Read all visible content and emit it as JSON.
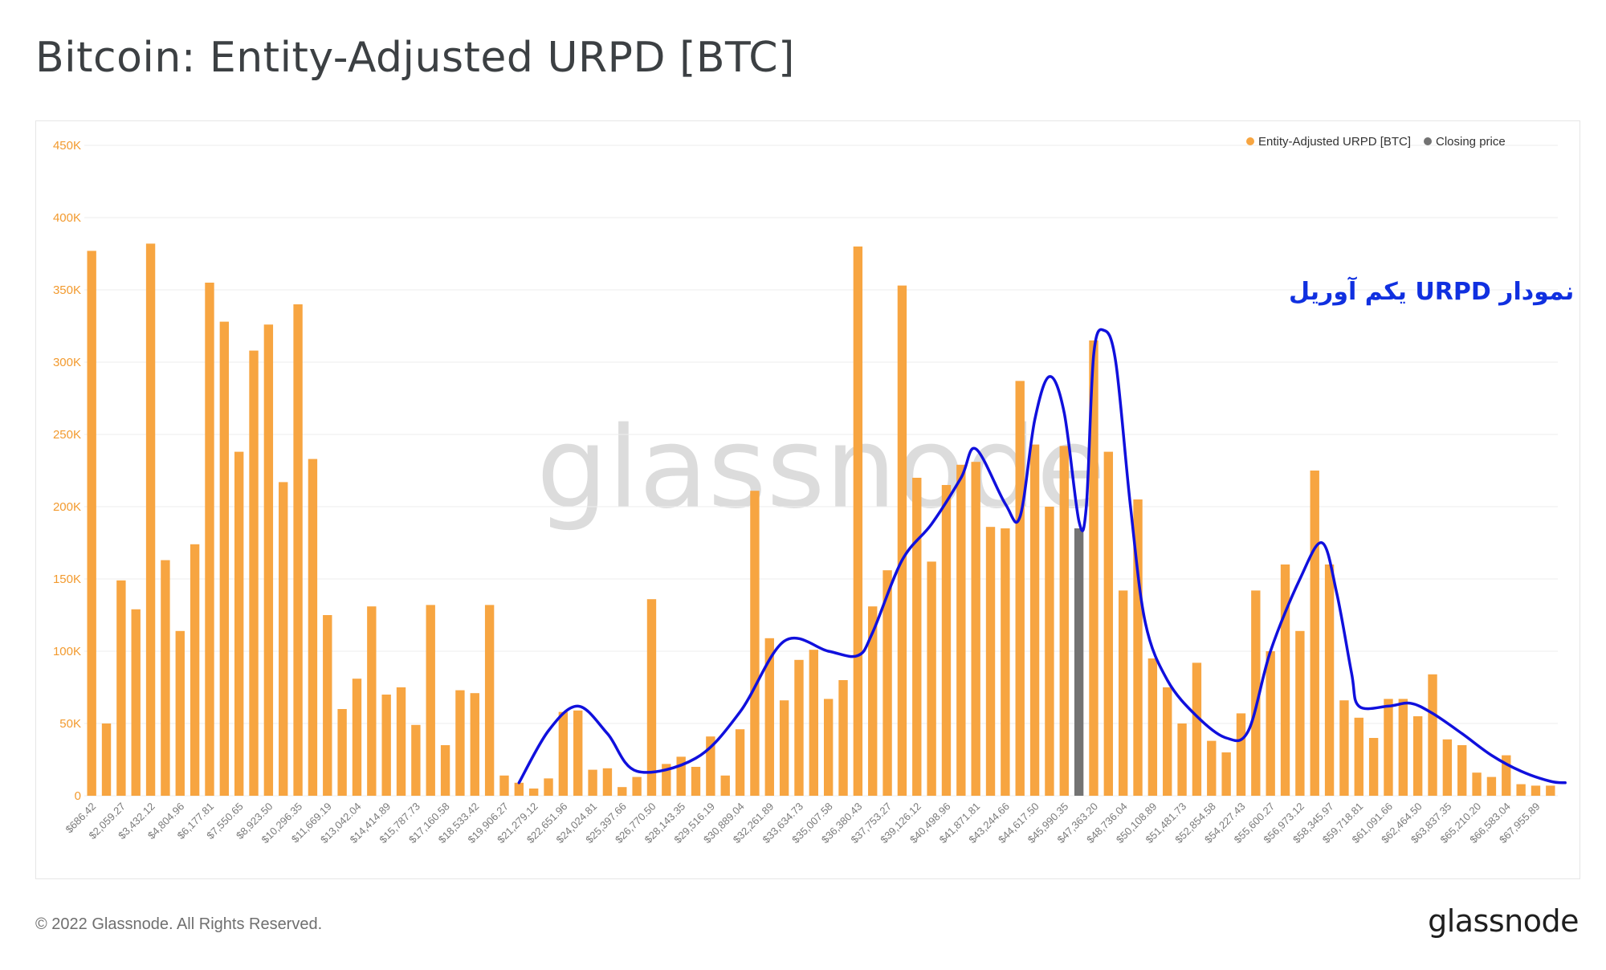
{
  "header": {
    "title": "Bitcoin: Entity-Adjusted URPD [BTC]"
  },
  "footer": {
    "copyright": "© 2022 Glassnode. All Rights Reserved.",
    "brand": "glassnode"
  },
  "watermark": "glassnode",
  "annotation": {
    "text": "نمودار URPD یکم آوریل",
    "color": "#1030e0"
  },
  "colors": {
    "bar": "#f7a541",
    "closing": "#737373",
    "grid": "#eeeeee",
    "axis_text": "#f29a2e",
    "curve": "#1010dd"
  },
  "chart_data": {
    "type": "bar",
    "title": "Bitcoin: Entity-Adjusted URPD [BTC]",
    "ylim": [
      0,
      450000
    ],
    "y_ticks": [
      0,
      50000,
      100000,
      150000,
      200000,
      250000,
      300000,
      350000,
      400000,
      450000
    ],
    "y_tick_labels": [
      "0",
      "50K",
      "100K",
      "150K",
      "200K",
      "250K",
      "300K",
      "350K",
      "400K",
      "450K"
    ],
    "grid": true,
    "legend_position": "top-right",
    "legend": [
      "Entity-Adjusted URPD [BTC]",
      "Closing price"
    ],
    "x_tick_labels": [
      "$686.42",
      "$2,059.27",
      "$3,432.12",
      "$4,804.96",
      "$6,177.81",
      "$7,550.65",
      "$8,923.50",
      "$10,296.35",
      "$11,669.19",
      "$13,042.04",
      "$14,414.89",
      "$15,787.73",
      "$17,160.58",
      "$18,533.42",
      "$19,906.27",
      "$21,279.12",
      "$22,651.96",
      "$24,024.81",
      "$25,397.66",
      "$26,770.50",
      "$28,143.35",
      "$29,516.19",
      "$30,889.04",
      "$32,261.89",
      "$33,634.73",
      "$35,007.58",
      "$36,380.43",
      "$37,753.27",
      "$39,126.12",
      "$40,498.96",
      "$41,871.81",
      "$43,244.66",
      "$44,617.50",
      "$45,990.35",
      "$47,363.20",
      "$48,736.04",
      "$50,108.89",
      "$51,481.73",
      "$52,854.58",
      "$54,227.43",
      "$55,600.27",
      "$56,973.12",
      "$58,345.97",
      "$59,718.81",
      "$61,091.66",
      "$62,464.50",
      "$63,837.35",
      "$65,210.20",
      "$66,583.04",
      "$67,955.89"
    ],
    "closing_price_index": 67,
    "series": [
      {
        "name": "Entity-Adjusted URPD [BTC]",
        "values": [
          377000,
          50000,
          149000,
          129000,
          382000,
          163000,
          114000,
          174000,
          355000,
          328000,
          238000,
          308000,
          326000,
          217000,
          340000,
          233000,
          125000,
          60000,
          81000,
          131000,
          70000,
          75000,
          49000,
          132000,
          35000,
          73000,
          71000,
          132000,
          14000,
          9000,
          5000,
          12000,
          58000,
          59000,
          18000,
          19000,
          6000,
          13000,
          136000,
          22000,
          27000,
          20000,
          41000,
          14000,
          46000,
          211000,
          109000,
          66000,
          94000,
          101000,
          67000,
          80000,
          380000,
          131000,
          156000,
          353000,
          220000,
          162000,
          215000,
          229000,
          231000,
          186000,
          185000,
          287000,
          243000,
          200000,
          242000,
          185000,
          315000,
          238000,
          142000,
          205000,
          95000,
          75000,
          50000,
          92000,
          38000,
          30000,
          57000,
          142000,
          100000,
          160000,
          114000,
          225000,
          160000,
          66000,
          54000,
          40000,
          67000,
          67000,
          55000,
          84000,
          39000,
          35000,
          16000,
          13000,
          28000,
          8000,
          7000,
          7000
        ]
      }
    ]
  }
}
